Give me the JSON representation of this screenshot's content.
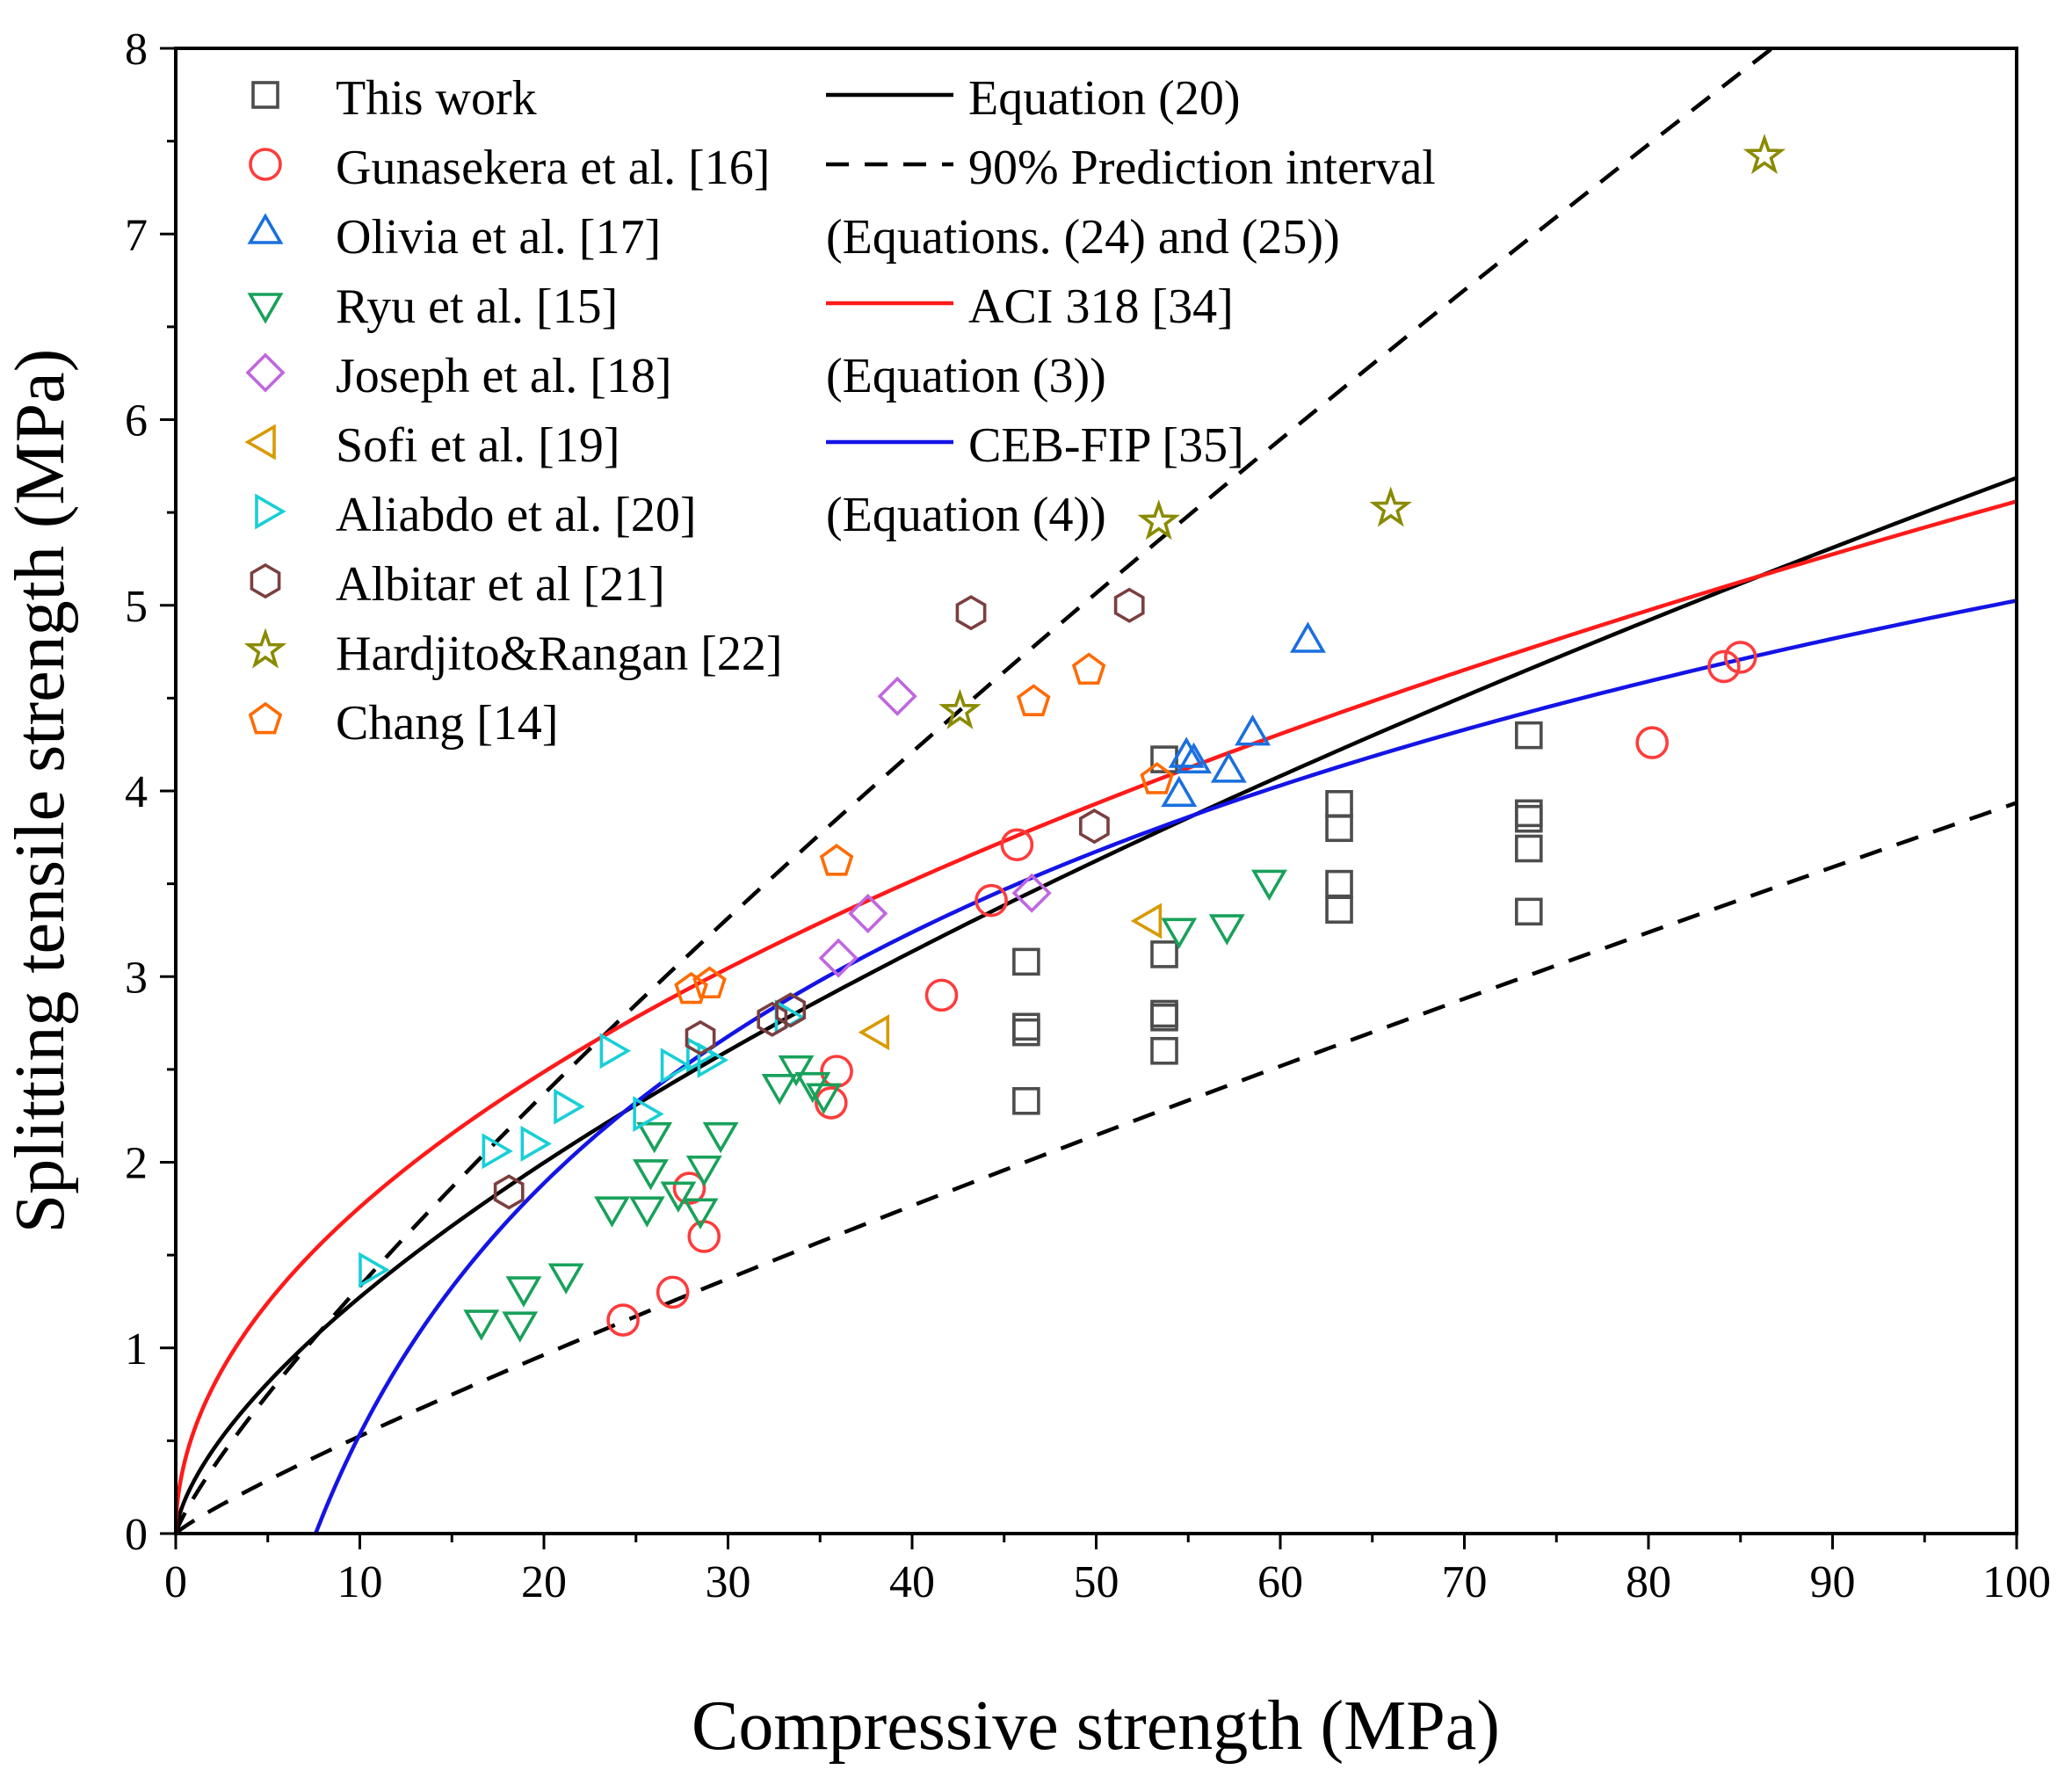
{
  "chart_data": {
    "type": "scatter",
    "xlabel": "Compressive strength (MPa)",
    "ylabel": "Splitting tensile strength (MPa)",
    "xlim": [
      0,
      100
    ],
    "ylim": [
      0,
      8
    ],
    "xticks": [
      0,
      10,
      20,
      30,
      40,
      50,
      60,
      70,
      80,
      90,
      100
    ],
    "yticks": [
      0,
      1,
      2,
      3,
      4,
      5,
      6,
      7,
      8
    ],
    "grid": false,
    "legend_position": "top-left",
    "scatter_series": [
      {
        "name": "This work",
        "marker": "square",
        "color": "#4d4d4d",
        "points": [
          [
            46.2,
            2.33
          ],
          [
            46.2,
            2.7
          ],
          [
            46.2,
            2.73
          ],
          [
            46.2,
            3.08
          ],
          [
            53.7,
            2.6
          ],
          [
            53.7,
            2.78
          ],
          [
            53.7,
            2.8
          ],
          [
            53.7,
            3.12
          ],
          [
            53.7,
            4.17
          ],
          [
            63.2,
            3.36
          ],
          [
            63.2,
            3.5
          ],
          [
            63.2,
            3.8
          ],
          [
            63.2,
            3.93
          ],
          [
            73.5,
            3.35
          ],
          [
            73.5,
            3.69
          ],
          [
            73.5,
            3.85
          ],
          [
            73.5,
            3.88
          ],
          [
            73.5,
            4.3
          ]
        ]
      },
      {
        "name": "Gunasekera et al. [16]",
        "marker": "circle",
        "color": "#ff3b3b",
        "points": [
          [
            24.3,
            1.15
          ],
          [
            27,
            1.3
          ],
          [
            27.9,
            1.86
          ],
          [
            28.7,
            1.6
          ],
          [
            35.6,
            2.32
          ],
          [
            35.9,
            2.49
          ],
          [
            41.6,
            2.9
          ],
          [
            44.3,
            3.41
          ],
          [
            45.7,
            3.71
          ],
          [
            80.2,
            4.26
          ],
          [
            84.1,
            4.67
          ],
          [
            85,
            4.72
          ]
        ]
      },
      {
        "name": "Olivia et al. [17]",
        "marker": "triangle-up",
        "color": "#1a6fdf",
        "points": [
          [
            54.5,
            3.97
          ],
          [
            54.9,
            4.18
          ],
          [
            55.3,
            4.15
          ],
          [
            57.2,
            4.1
          ],
          [
            58.5,
            4.3
          ],
          [
            61.5,
            4.8
          ]
        ]
      },
      {
        "name": "Ryu et al. [15]",
        "marker": "triangle-down",
        "color": "#18a15a",
        "points": [
          [
            16.6,
            1.15
          ],
          [
            18.7,
            1.14
          ],
          [
            18.9,
            1.33
          ],
          [
            21.2,
            1.4
          ],
          [
            23.7,
            1.76
          ],
          [
            25.6,
            1.76
          ],
          [
            25.8,
            1.96
          ],
          [
            26,
            2.16
          ],
          [
            27.3,
            1.84
          ],
          [
            28.5,
            1.75
          ],
          [
            28.7,
            1.98
          ],
          [
            29.6,
            2.16
          ],
          [
            32.8,
            2.42
          ],
          [
            33.7,
            2.52
          ],
          [
            34.6,
            2.43
          ],
          [
            35.2,
            2.37
          ],
          [
            54.5,
            3.26
          ],
          [
            57.1,
            3.28
          ],
          [
            59.4,
            3.52
          ]
        ]
      },
      {
        "name": "Joseph et al. [18]",
        "marker": "diamond",
        "color": "#c066e0",
        "points": [
          [
            36,
            3.1
          ],
          [
            37.6,
            3.34
          ],
          [
            39.2,
            4.51
          ],
          [
            46.5,
            3.45
          ]
        ]
      },
      {
        "name": "Sofi et al. [19]",
        "marker": "triangle-left",
        "color": "#d89a00",
        "points": [
          [
            38.2,
            2.7
          ],
          [
            53,
            3.3
          ]
        ]
      },
      {
        "name": "Aliabdo et al. [20]",
        "marker": "triangle-right",
        "color": "#18cfd6",
        "points": [
          [
            10.5,
            1.42
          ],
          [
            17.2,
            2.06
          ],
          [
            19.3,
            2.1
          ],
          [
            21.1,
            2.3
          ],
          [
            23.6,
            2.6
          ],
          [
            25.4,
            2.26
          ],
          [
            26.9,
            2.52
          ],
          [
            28.3,
            2.58
          ],
          [
            28.9,
            2.55
          ],
          [
            33.1,
            2.78
          ]
        ]
      },
      {
        "name": "Albitar et al [21]",
        "marker": "hexagon",
        "color": "#7b3f3f",
        "points": [
          [
            18.1,
            1.84
          ],
          [
            28.5,
            2.67
          ],
          [
            32.4,
            2.77
          ],
          [
            33.4,
            2.82
          ],
          [
            43.2,
            4.96
          ],
          [
            49.9,
            3.81
          ],
          [
            51.8,
            5
          ]
        ]
      },
      {
        "name": "Hardjito&Rangan [22]",
        "marker": "star",
        "color": "#8a8a00",
        "points": [
          [
            42.6,
            4.43
          ],
          [
            53.4,
            5.45
          ],
          [
            66,
            5.52
          ],
          [
            86.3,
            7.42
          ]
        ]
      },
      {
        "name": "Chang [14]",
        "marker": "pentagon",
        "color": "#ff6a00",
        "points": [
          [
            28,
            2.93
          ],
          [
            29,
            2.96
          ],
          [
            35.9,
            3.62
          ],
          [
            46.6,
            4.48
          ],
          [
            49.6,
            4.65
          ],
          [
            53.3,
            4.06
          ]
        ]
      }
    ],
    "line_series": [
      {
        "name": "Equation (20)",
        "style": "solid",
        "color": "#000000",
        "formula": "0.285*x^0.65",
        "x_range": [
          0,
          100
        ]
      },
      {
        "name": "90% Prediction interval",
        "style": "dashed",
        "color": "#000000",
        "formula": "0.197*x^0.83",
        "x_range": [
          0,
          100
        ]
      },
      {
        "name": "90% Prediction interval (lower)",
        "style": "dashed",
        "color": "#000000",
        "formula": "0.07*x^0.875",
        "x_range": [
          0,
          100
        ]
      },
      {
        "name": "ACI 318 [34]",
        "style": "solid",
        "color": "#ff1a1a",
        "formula": "0.556*x^0.5",
        "x_range": [
          0,
          100
        ]
      },
      {
        "name": "CEB-FIP [35]",
        "style": "solid",
        "color": "#1414e6",
        "formula": "1.95*ln(x/7.6)",
        "x_range": [
          7.6,
          100
        ]
      }
    ],
    "legend_left": [
      "This work",
      "Gunasekera et al. [16]",
      "Olivia et al. [17]",
      "Ryu et al. [15]",
      "Joseph et al. [18]",
      "Sofi et al. [19]",
      "Aliabdo et al. [20]",
      "Albitar et al [21]",
      "Hardjito&Rangan [22]",
      "Chang [14]"
    ],
    "legend_right": [
      {
        "label": "Equation (20)",
        "line": "solid",
        "color": "#000000"
      },
      {
        "label": "90% Prediction interval",
        "line": "dashed",
        "color": "#000000"
      },
      {
        "label": "(Equations. (24) and (25))",
        "line": "none",
        "color": "#000000"
      },
      {
        "label": "ACI 318 [34]",
        "line": "solid",
        "color": "#ff1a1a"
      },
      {
        "label": "(Equation (3))",
        "line": "none",
        "color": "#000000"
      },
      {
        "label": "CEB-FIP [35]",
        "line": "solid",
        "color": "#1414e6"
      },
      {
        "label": "(Equation (4))",
        "line": "none",
        "color": "#000000"
      }
    ]
  }
}
